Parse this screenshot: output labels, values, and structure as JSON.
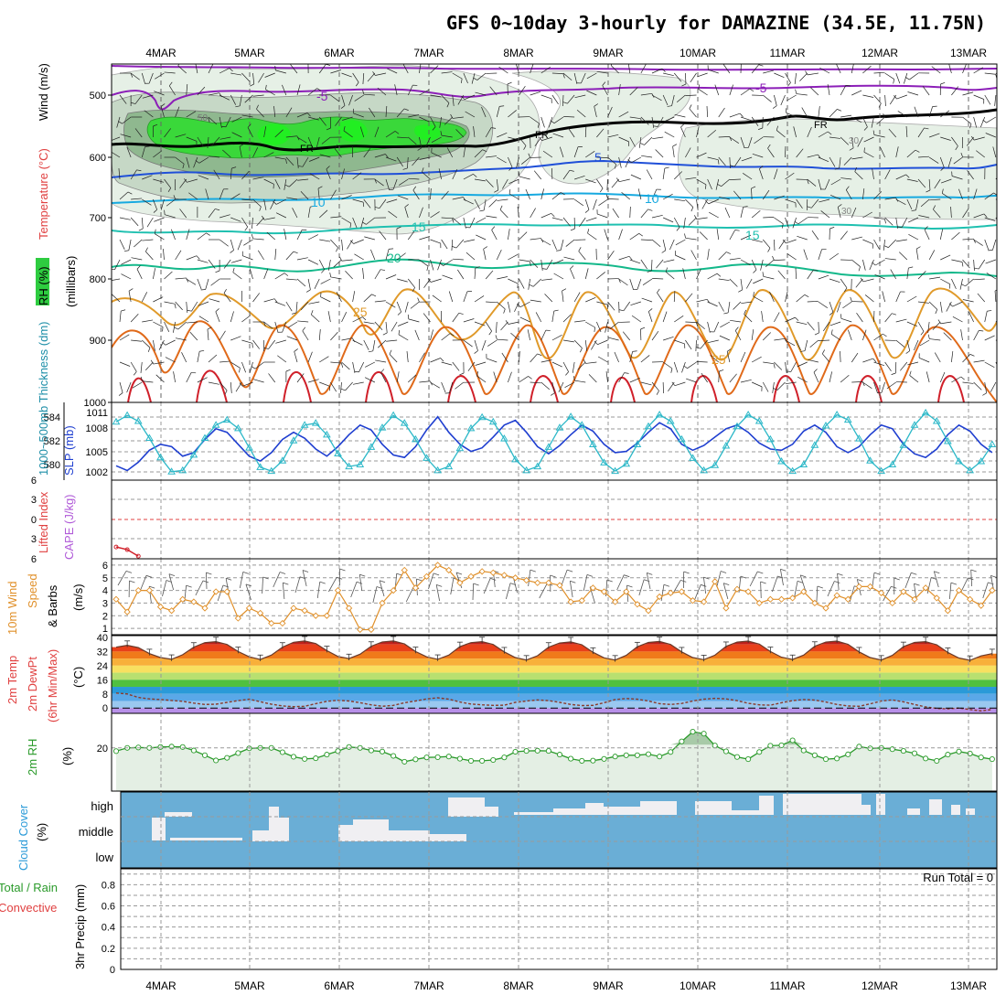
{
  "title": "GFS 0~10day 3-hourly for DAMAZINE (34.5E, 11.75N)",
  "dates": [
    "4MAR",
    "5MAR",
    "6MAR",
    "7MAR",
    "8MAR",
    "9MAR",
    "10MAR",
    "11MAR",
    "12MAR",
    "13MAR"
  ],
  "colors": {
    "rh_green": "#2ecc40",
    "rh_dark": "#999999",
    "temp_purple": "#8c1fb8",
    "temp_blue": "#1f4fd8",
    "temp_cyan": "#16a9e0",
    "temp_teal": "#1fc0b0",
    "temp_green": "#13b88a",
    "temp_orange": "#e09a2a",
    "temp_darkorange": "#e06a1a",
    "temp_red": "#d0202a",
    "thickness": "#1f3fd0",
    "slp": "#2cb8c8",
    "wind": "#e0902a",
    "rh2m": "#2a9a2a",
    "cloud_blue": "#6aaed6",
    "cloud_white": "#f2f2f2"
  },
  "panels": {
    "upper": {
      "labels": {
        "rh": "RH (%)",
        "temperature": "Temperature (°C)",
        "wind": "Wind (m/s)",
        "millibars": "(millibars)"
      },
      "yticks": [
        "500",
        "600",
        "700",
        "800",
        "900",
        "1000"
      ],
      "contour_labels": [
        "-5",
        "-5",
        "FR",
        "FR",
        "FR",
        "5",
        "5",
        "10",
        "10",
        "15",
        "15",
        "20",
        "25",
        "25",
        "30",
        "50",
        "30",
        "30"
      ]
    },
    "thickness": {
      "labels": {
        "thickness": "1000~500mb Thickness (dm)",
        "slp": "SLP (mb)"
      },
      "yticks_left": [
        "584",
        "582",
        "580"
      ],
      "yticks_right": [
        "1011",
        "1008",
        "1005",
        "1002"
      ]
    },
    "cape": {
      "labels": {
        "li": "Lifted Index",
        "cape": "CAPE (J/kg)"
      },
      "yticks": [
        "6",
        "3",
        "0",
        "3",
        "6"
      ]
    },
    "wind10m": {
      "labels": {
        "a": "10m Wind",
        "b": "Speed",
        "c": "& Barbs",
        "unit": "(m/s)"
      },
      "yticks": [
        "6",
        "5",
        "4",
        "3",
        "2",
        "1"
      ]
    },
    "temp2m": {
      "labels": {
        "a": "2m Temp",
        "b": "2m DewPt",
        "c": "(6hr Min/Max)",
        "unit": "(°C)"
      },
      "yticks": [
        "40",
        "32",
        "24",
        "16",
        "8",
        "0"
      ]
    },
    "rh2m": {
      "labels": {
        "a": "2m RH",
        "unit": "(%)"
      },
      "yticks": [
        "20"
      ]
    },
    "cloud": {
      "labels": {
        "a": "Cloud Cover",
        "unit": "(%)"
      },
      "levels": [
        "high",
        "middle",
        "low"
      ]
    },
    "precip": {
      "labels": {
        "a": "Total / Rain",
        "b": "Convective",
        "c": "3hr Precip (mm)"
      },
      "yticks": [
        "0.8",
        "0.6",
        "0.4",
        "0.2",
        "0"
      ],
      "run_total": "Run Total = 0"
    }
  },
  "chart_data": [
    {
      "type": "line",
      "title": "1000~500mb Thickness / SLP",
      "x_start": "2024-03-03T12:00",
      "step_hours": 3,
      "series": [
        {
          "name": "1000~500mb Thickness (dm)",
          "ylim": [
            579,
            585.5
          ],
          "values": [
            580.2,
            579.8,
            580.5,
            581.5,
            582.0,
            581.8,
            581.0,
            581.3,
            582.4,
            583.3,
            583.0,
            582.0,
            581.0,
            580.6,
            581.3,
            582.4,
            583.0,
            582.5,
            581.6,
            581.0,
            581.8,
            582.8,
            583.6,
            583.2,
            582.0,
            581.1,
            580.9,
            581.8,
            583.2,
            584.3,
            583.0,
            582.0,
            581.4,
            581.7,
            582.6,
            583.6,
            584.0,
            583.0,
            581.8,
            581.2,
            581.9,
            582.8,
            583.6,
            583.1,
            582.0,
            581.3,
            581.4,
            582.1,
            583.0,
            583.8,
            583.3,
            582.0,
            581.5,
            581.9,
            582.6,
            583.3,
            583.6,
            583.0,
            582.1,
            581.6,
            581.5,
            582.0,
            583.1,
            583.6,
            583.0,
            581.8,
            581.3,
            581.8,
            582.8,
            583.6,
            583.3,
            582.0,
            581.2,
            580.9,
            581.6,
            582.8,
            583.6,
            583.1,
            582.0,
            581.3
          ]
        },
        {
          "name": "SLP (mb)",
          "ylim": [
            1000.5,
            1012.5
          ],
          "values": [
            1009.5,
            1010.5,
            1009.6,
            1007.0,
            1004.0,
            1001.8,
            1002.0,
            1004.4,
            1007.0,
            1009.0,
            1009.8,
            1008.5,
            1005.5,
            1002.5,
            1001.9,
            1003.5,
            1006.6,
            1009.0,
            1009.3,
            1007.5,
            1004.6,
            1002.6,
            1002.9,
            1005.6,
            1008.6,
            1010.5,
            1009.3,
            1006.8,
            1003.9,
            1002.0,
            1002.6,
            1005.4,
            1008.5,
            1010.2,
            1009.5,
            1006.9,
            1003.7,
            1002.0,
            1002.6,
            1005.6,
            1008.6,
            1010.3,
            1009.0,
            1006.0,
            1003.2,
            1001.9,
            1003.0,
            1006.0,
            1008.8,
            1010.6,
            1009.6,
            1006.8,
            1003.9,
            1002.0,
            1002.8,
            1005.8,
            1008.8,
            1010.6,
            1009.6,
            1006.8,
            1003.4,
            1001.9,
            1002.9,
            1005.9,
            1008.9,
            1010.6,
            1009.8,
            1006.9,
            1003.5,
            1001.9,
            1002.9,
            1005.9,
            1009.0,
            1010.9,
            1009.6,
            1006.5,
            1003.4,
            1002.0,
            1003.4,
            1006.0
          ]
        }
      ]
    },
    {
      "type": "line",
      "title": "Lifted Index / CAPE",
      "series": [
        {
          "name": "Lifted Index",
          "ylim": [
            6,
            -6
          ],
          "values": [
            4.2,
            4.6,
            5.6
          ]
        }
      ]
    },
    {
      "type": "line",
      "title": "10m Wind Speed",
      "x_start": "2024-03-03T12:00",
      "step_hours": 3,
      "ylim": [
        0.5,
        6.5
      ],
      "series": [
        {
          "name": "Speed",
          "values": [
            3.3,
            2.3,
            4.0,
            4.0,
            2.7,
            2.4,
            3.3,
            3.1,
            2.6,
            3.9,
            3.9,
            1.8,
            2.6,
            2.2,
            1.4,
            1.4,
            2.6,
            2.4,
            2.0,
            2.0,
            4.0,
            2.6,
            0.9,
            0.9,
            3.0,
            4.0,
            5.6,
            4.2,
            5.1,
            6.0,
            5.6,
            4.6,
            5.1,
            5.5,
            5.4,
            5.2,
            5.0,
            4.8,
            4.6,
            4.6,
            4.4,
            3.1,
            3.2,
            4.2,
            3.9,
            3.1,
            3.9,
            2.9,
            2.4,
            3.5,
            3.8,
            3.9,
            3.2,
            3.1,
            4.7,
            2.6,
            4.1,
            3.9,
            3.0,
            3.3,
            3.3,
            3.4,
            3.9,
            3.0,
            2.6,
            3.6,
            3.3,
            4.3,
            4.3,
            3.8,
            3.0,
            3.9,
            3.3,
            4.2,
            3.4,
            2.4,
            4.0,
            3.3,
            2.8,
            4.0
          ]
        }
      ]
    },
    {
      "type": "area",
      "title": "2m Temp / 2m DewPt",
      "x_start": "2024-03-03T12:00",
      "step_hours": 3,
      "ylim": [
        -3,
        41
      ],
      "series": [
        {
          "name": "2m Temp",
          "values": [
            34.5,
            35.5,
            34.2,
            30.8,
            28.6,
            27.6,
            30.2,
            34.5,
            37.0,
            37.6,
            36.0,
            32.0,
            29.0,
            27.5,
            30.0,
            34.5,
            37.2,
            38.0,
            36.5,
            32.5,
            29.2,
            28.0,
            30.5,
            35.0,
            37.4,
            38.0,
            36.3,
            32.0,
            29.0,
            27.6,
            30.0,
            34.8,
            37.0,
            37.6,
            36.0,
            31.8,
            28.6,
            27.2,
            29.6,
            34.5,
            36.8,
            37.5,
            35.8,
            31.6,
            28.4,
            27.2,
            29.8,
            34.7,
            37.1,
            37.7,
            36.0,
            31.8,
            28.6,
            27.4,
            29.9,
            34.9,
            37.3,
            37.9,
            36.2,
            32.0,
            28.8,
            27.5,
            30.0,
            35.0,
            37.3,
            37.9,
            36.1,
            31.8,
            28.6,
            27.2,
            29.8,
            34.8,
            37.1,
            37.6,
            35.8,
            31.5,
            28.3,
            27.0,
            29.5,
            30.8
          ]
        },
        {
          "name": "2m DewPt",
          "values": [
            8.5,
            8.0,
            6.0,
            5.2,
            4.8,
            4.3,
            3.8,
            2.8,
            2.0,
            2.2,
            3.2,
            4.2,
            5.0,
            3.6,
            2.2,
            1.2,
            0.8,
            1.0,
            2.5,
            3.8,
            4.4,
            4.0,
            3.0,
            1.8,
            1.0,
            1.5,
            3.0,
            4.0,
            5.2,
            5.8,
            5.0,
            3.4,
            2.3,
            1.8,
            1.5,
            1.6,
            3.2,
            4.0,
            4.6,
            4.2,
            3.2,
            2.0,
            1.4,
            1.5,
            3.0,
            4.8,
            5.4,
            5.0,
            4.0,
            2.5,
            2.0,
            2.6,
            4.0,
            5.0,
            5.5,
            5.2,
            4.2,
            2.7,
            1.8,
            1.6,
            3.0,
            4.2,
            4.8,
            4.5,
            3.4,
            2.0,
            1.2,
            1.0,
            2.4,
            4.0,
            4.6,
            3.5,
            2.0,
            0.6,
            -0.2,
            -0.4,
            0.0,
            -0.8,
            -1.6,
            -0.8
          ]
        }
      ]
    },
    {
      "type": "line",
      "title": "2m RH",
      "x_start": "2024-03-03T12:00",
      "step_hours": 3,
      "ylim": [
        0,
        36
      ],
      "series": [
        {
          "name": "2m RH",
          "values": [
            18.5,
            20.0,
            20.2,
            20.0,
            20.4,
            20.6,
            20.4,
            18.8,
            16.6,
            14.2,
            15.4,
            17.6,
            19.8,
            20.0,
            20.0,
            18.0,
            15.9,
            14.9,
            15.2,
            16.9,
            18.5,
            20.4,
            20.0,
            18.8,
            18.3,
            16.3,
            13.6,
            14.7,
            15.6,
            15.7,
            16.0,
            15.0,
            14.0,
            14.0,
            14.4,
            15.6,
            18.2,
            18.6,
            18.7,
            18.6,
            16.9,
            15.0,
            14.0,
            14.1,
            14.9,
            16.0,
            16.6,
            16.6,
            17.1,
            16.0,
            18.1,
            23.0,
            27.5,
            26.6,
            21.1,
            18.4,
            15.8,
            14.8,
            18.1,
            21.0,
            21.2,
            23.5,
            18.8,
            16.6,
            14.8,
            15.1,
            17.0,
            20.6,
            19.8,
            20.0,
            19.4,
            18.6,
            17.5,
            15.1,
            14.0,
            16.9,
            18.3,
            17.4,
            15.6,
            14.8
          ]
        }
      ]
    },
    {
      "type": "bar",
      "title": "3hr Precip (mm)",
      "ylim": [
        0,
        0.95
      ],
      "values": [],
      "run_total": 0
    }
  ]
}
